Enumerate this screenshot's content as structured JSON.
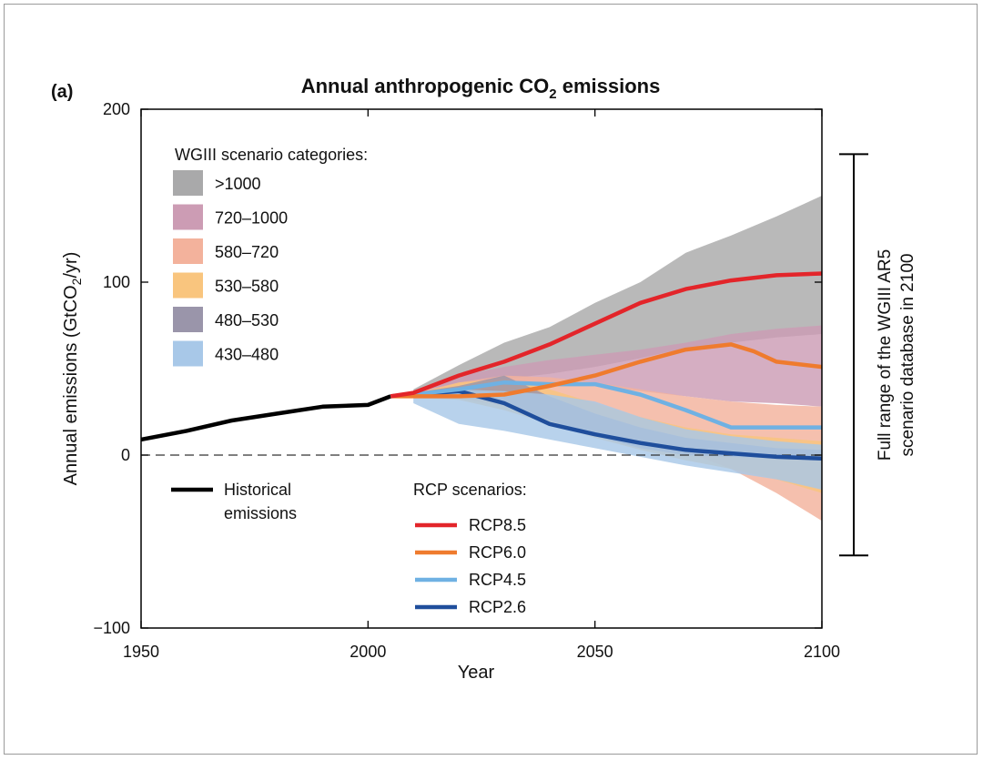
{
  "panel_label": "(a)",
  "chart_data": {
    "type": "area",
    "title": {
      "main": "Annual anthropogenic CO",
      "sub": "2",
      "rest": " emissions"
    },
    "xlabel": "Year",
    "ylabel": {
      "pre": "Annual emissions (GtCO",
      "sub": "2",
      "post": "/yr)"
    },
    "xlim": [
      1950,
      2100
    ],
    "ylim": [
      -100,
      200
    ],
    "xticks": [
      1950,
      2000,
      2050,
      2100
    ],
    "yticks": [
      200,
      100,
      0,
      -100
    ],
    "ytick_labels": [
      "200",
      "100",
      "0",
      "−100"
    ],
    "zero_line": "dashed",
    "legend_bands_title": "WGIII scenario categories:",
    "bands": [
      {
        "name": ">1000",
        "color": "#a9a9aa",
        "x": [
          2010,
          2020,
          2030,
          2040,
          2050,
          2060,
          2070,
          2080,
          2090,
          2100
        ],
        "upper": [
          38,
          52,
          65,
          74,
          88,
          100,
          117,
          127,
          138,
          150
        ],
        "lower": [
          35,
          40,
          44,
          47,
          51,
          56,
          62,
          65,
          68,
          70
        ]
      },
      {
        "name": "720–1000",
        "color": "#cc9cb4",
        "x": [
          2010,
          2020,
          2030,
          2040,
          2050,
          2060,
          2070,
          2080,
          2090,
          2100
        ],
        "upper": [
          37,
          46,
          51,
          55,
          58,
          61,
          65,
          70,
          73,
          75
        ],
        "lower": [
          34,
          37,
          41,
          41,
          40,
          37,
          34,
          31,
          30,
          28
        ]
      },
      {
        "name": "580–720",
        "color": "#f3b29c",
        "x": [
          2010,
          2020,
          2030,
          2040,
          2050,
          2060,
          2070,
          2080,
          2090,
          2100
        ],
        "upper": [
          36,
          42,
          46,
          45,
          42,
          38,
          34,
          31,
          29,
          28
        ],
        "lower": [
          33,
          33,
          28,
          20,
          14,
          8,
          2,
          -8,
          -22,
          -38
        ]
      },
      {
        "name": "530–580",
        "color": "#f9c57e",
        "x": [
          2010,
          2020,
          2030,
          2040,
          2050,
          2060,
          2070,
          2080,
          2090,
          2100
        ],
        "upper": [
          35,
          42,
          44,
          38,
          30,
          22,
          16,
          12,
          10,
          8
        ],
        "lower": [
          33,
          32,
          26,
          18,
          10,
          3,
          -3,
          -8,
          -14,
          -22
        ]
      },
      {
        "name": "480–530",
        "color": "#9a95aa",
        "x": [
          2010,
          2020,
          2030,
          2040,
          2050,
          2060,
          2070,
          2080,
          2090,
          2100
        ],
        "upper": [
          36,
          40,
          46,
          34,
          24,
          16,
          10,
          7,
          4,
          3
        ],
        "lower": [
          33,
          34,
          30,
          20,
          11,
          4,
          0,
          -1,
          -2,
          -3
        ]
      },
      {
        "name": "430–480",
        "color": "#a8c8e8",
        "x": [
          2010,
          2020,
          2030,
          2040,
          2050,
          2060,
          2070,
          2080,
          2090,
          2100
        ],
        "upper": [
          35,
          38,
          37,
          35,
          31,
          22,
          15,
          11,
          8,
          6
        ],
        "lower": [
          30,
          18,
          14,
          9,
          4,
          -1,
          -6,
          -10,
          -14,
          -20
        ]
      }
    ],
    "historical": {
      "name": "Historical emissions",
      "label_lines": [
        "Historical",
        "emissions"
      ],
      "color": "#000000",
      "x": [
        1950,
        1960,
        1970,
        1980,
        1990,
        2000,
        2005
      ],
      "y": [
        9,
        14,
        20,
        24,
        28,
        29,
        34
      ]
    },
    "legend_rcp_title": "RCP scenarios:",
    "series": [
      {
        "name": "RCP8.5",
        "color": "#e3252a",
        "x": [
          2005,
          2010,
          2020,
          2030,
          2040,
          2050,
          2060,
          2070,
          2080,
          2090,
          2100
        ],
        "values": [
          34,
          36,
          46,
          54,
          64,
          76,
          88,
          96,
          101,
          104,
          105
        ]
      },
      {
        "name": "RCP6.0",
        "color": "#ef7b2e",
        "x": [
          2005,
          2010,
          2020,
          2030,
          2040,
          2050,
          2060,
          2070,
          2080,
          2085,
          2090,
          2100
        ],
        "values": [
          34,
          34,
          34,
          35,
          40,
          46,
          54,
          61,
          64,
          60,
          54,
          51
        ]
      },
      {
        "name": "RCP4.5",
        "color": "#6fb1e3",
        "x": [
          2005,
          2010,
          2020,
          2030,
          2040,
          2050,
          2060,
          2070,
          2080,
          2090,
          2100
        ],
        "values": [
          34,
          35,
          38,
          42,
          41,
          41,
          35,
          26,
          16,
          16,
          16
        ]
      },
      {
        "name": "RCP2.6",
        "color": "#1f4e9c",
        "x": [
          2005,
          2010,
          2020,
          2030,
          2040,
          2050,
          2060,
          2070,
          2080,
          2090,
          2100
        ],
        "values": [
          34,
          35,
          37,
          30,
          18,
          12,
          7,
          3,
          1,
          -1,
          -2
        ]
      }
    ],
    "range_bracket": {
      "year": 2100,
      "upper": 174,
      "lower": -58,
      "label_lines": [
        "Full range of the WGIII AR5",
        "scenario database in 2100"
      ]
    }
  }
}
